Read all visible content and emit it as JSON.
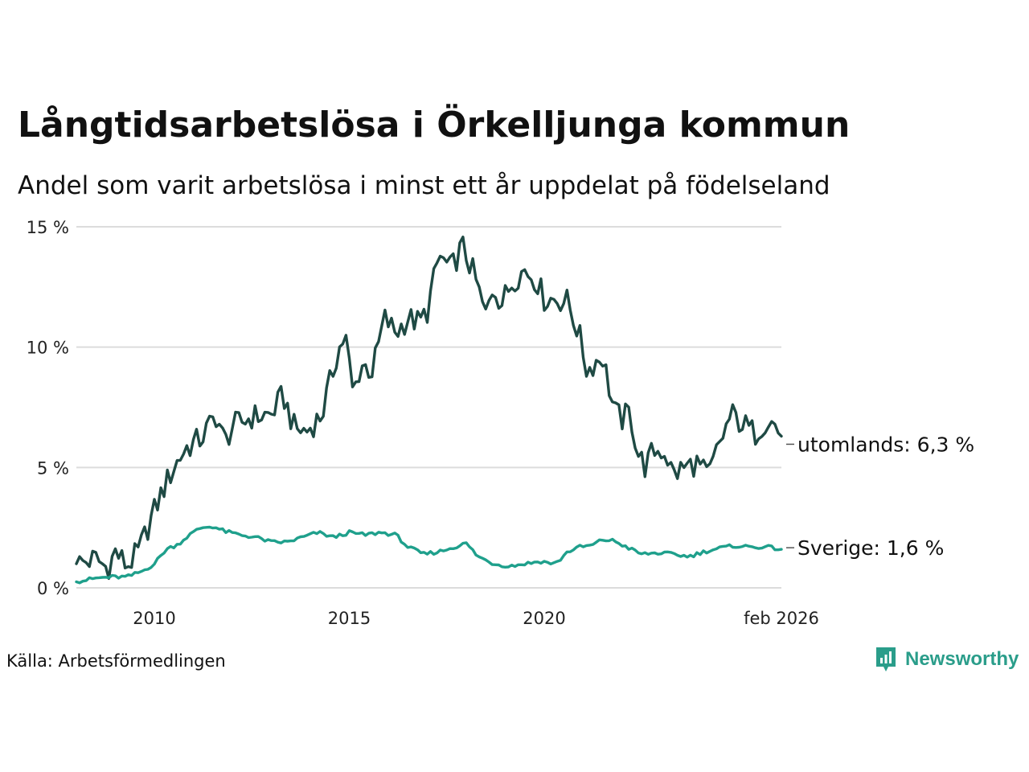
{
  "header": {
    "title": "Långtidsarbetslösa i Örkelljunga kommun",
    "subtitle": "Andel som varit arbetslösa i minst ett år uppdelat på födelseland"
  },
  "footer": {
    "source": "Källa: Arbetsförmedlingen",
    "brand": "Newsworthy"
  },
  "colors": {
    "utomlands": "#1f4a44",
    "sverige": "#1fa08c",
    "grid": "#dcdcdc"
  },
  "chart_data": {
    "type": "line",
    "title": "Långtidsarbetslösa i Örkelljunga kommun",
    "xlabel": "",
    "ylabel": "",
    "ylim": [
      0,
      15
    ],
    "yticks": [
      0,
      5,
      10,
      15
    ],
    "ytick_labels": [
      "0 %",
      "5 %",
      "10 %",
      "15 %"
    ],
    "xlim": [
      2008.0,
      2026.083
    ],
    "xticks": [
      2010,
      2015,
      2020,
      2026.083
    ],
    "xtick_labels": [
      "2010",
      "2015",
      "2020",
      "feb 2026"
    ],
    "grid": true,
    "series": [
      {
        "name": "utomlands",
        "end_label": "utomlands: 6,3 %",
        "knots": [
          [
            2008.0,
            1.0
          ],
          [
            2008.5,
            1.2
          ],
          [
            2008.8,
            0.8
          ],
          [
            2009.0,
            1.5
          ],
          [
            2009.3,
            0.9
          ],
          [
            2009.6,
            1.5
          ],
          [
            2009.9,
            2.8
          ],
          [
            2010.2,
            4.0
          ],
          [
            2010.5,
            5.0
          ],
          [
            2010.8,
            5.8
          ],
          [
            2011.2,
            6.2
          ],
          [
            2011.6,
            7.2
          ],
          [
            2011.8,
            6.0
          ],
          [
            2012.0,
            6.7
          ],
          [
            2012.5,
            7.1
          ],
          [
            2013.0,
            7.2
          ],
          [
            2013.3,
            8.0
          ],
          [
            2013.6,
            6.6
          ],
          [
            2013.9,
            6.5
          ],
          [
            2014.3,
            7.2
          ],
          [
            2014.5,
            8.5
          ],
          [
            2014.7,
            9.8
          ],
          [
            2014.9,
            10.5
          ],
          [
            2015.1,
            8.0
          ],
          [
            2015.3,
            9.3
          ],
          [
            2015.6,
            9.0
          ],
          [
            2015.9,
            11.2
          ],
          [
            2016.2,
            10.6
          ],
          [
            2016.5,
            11.2
          ],
          [
            2016.8,
            11.0
          ],
          [
            2017.0,
            11.5
          ],
          [
            2017.3,
            13.8
          ],
          [
            2017.6,
            13.2
          ],
          [
            2017.9,
            14.2
          ],
          [
            2018.2,
            13.0
          ],
          [
            2018.5,
            11.3
          ],
          [
            2018.7,
            12.6
          ],
          [
            2018.9,
            11.8
          ],
          [
            2019.2,
            12.8
          ],
          [
            2019.5,
            13.2
          ],
          [
            2019.8,
            12.8
          ],
          [
            2020.0,
            12.0
          ],
          [
            2020.3,
            12.0
          ],
          [
            2020.6,
            11.9
          ],
          [
            2020.9,
            10.5
          ],
          [
            2021.1,
            9.0
          ],
          [
            2021.3,
            9.4
          ],
          [
            2021.5,
            9.6
          ],
          [
            2021.8,
            7.3
          ],
          [
            2022.0,
            7.0
          ],
          [
            2022.2,
            7.3
          ],
          [
            2022.4,
            5.6
          ],
          [
            2022.6,
            5.0
          ],
          [
            2022.8,
            5.7
          ],
          [
            2023.1,
            5.7
          ],
          [
            2023.3,
            4.7
          ],
          [
            2023.6,
            5.0
          ],
          [
            2023.9,
            5.2
          ],
          [
            2024.2,
            4.6
          ],
          [
            2024.5,
            6.0
          ],
          [
            2024.8,
            7.2
          ],
          [
            2025.1,
            6.8
          ],
          [
            2025.4,
            6.4
          ],
          [
            2025.7,
            7.0
          ],
          [
            2025.9,
            6.8
          ],
          [
            2026.083,
            6.3
          ]
        ]
      },
      {
        "name": "Sverige",
        "end_label": "Sverige: 1,6 %",
        "knots": [
          [
            2008.0,
            0.25
          ],
          [
            2008.5,
            0.4
          ],
          [
            2008.9,
            0.45
          ],
          [
            2009.3,
            0.45
          ],
          [
            2009.7,
            0.7
          ],
          [
            2010.0,
            1.0
          ],
          [
            2010.3,
            1.6
          ],
          [
            2010.6,
            1.8
          ],
          [
            2010.9,
            2.2
          ],
          [
            2011.2,
            2.5
          ],
          [
            2011.5,
            2.55
          ],
          [
            2011.8,
            2.35
          ],
          [
            2012.2,
            2.2
          ],
          [
            2012.6,
            2.1
          ],
          [
            2013.0,
            1.9
          ],
          [
            2013.4,
            1.9
          ],
          [
            2013.8,
            2.1
          ],
          [
            2014.2,
            2.3
          ],
          [
            2014.6,
            2.1
          ],
          [
            2015.0,
            2.3
          ],
          [
            2015.4,
            2.2
          ],
          [
            2015.8,
            2.3
          ],
          [
            2016.2,
            2.2
          ],
          [
            2016.5,
            1.7
          ],
          [
            2016.9,
            1.4
          ],
          [
            2017.3,
            1.5
          ],
          [
            2017.7,
            1.7
          ],
          [
            2018.0,
            1.85
          ],
          [
            2018.3,
            1.3
          ],
          [
            2018.7,
            1.0
          ],
          [
            2019.1,
            0.9
          ],
          [
            2019.5,
            1.0
          ],
          [
            2019.9,
            1.1
          ],
          [
            2020.3,
            1.0
          ],
          [
            2020.6,
            1.5
          ],
          [
            2020.9,
            1.7
          ],
          [
            2021.2,
            1.75
          ],
          [
            2021.5,
            2.0
          ],
          [
            2021.8,
            1.95
          ],
          [
            2022.1,
            1.7
          ],
          [
            2022.5,
            1.4
          ],
          [
            2022.9,
            1.45
          ],
          [
            2023.3,
            1.4
          ],
          [
            2023.7,
            1.3
          ],
          [
            2024.1,
            1.5
          ],
          [
            2024.5,
            1.65
          ],
          [
            2024.9,
            1.75
          ],
          [
            2025.3,
            1.7
          ],
          [
            2025.7,
            1.7
          ],
          [
            2026.083,
            1.6
          ]
        ]
      }
    ]
  }
}
